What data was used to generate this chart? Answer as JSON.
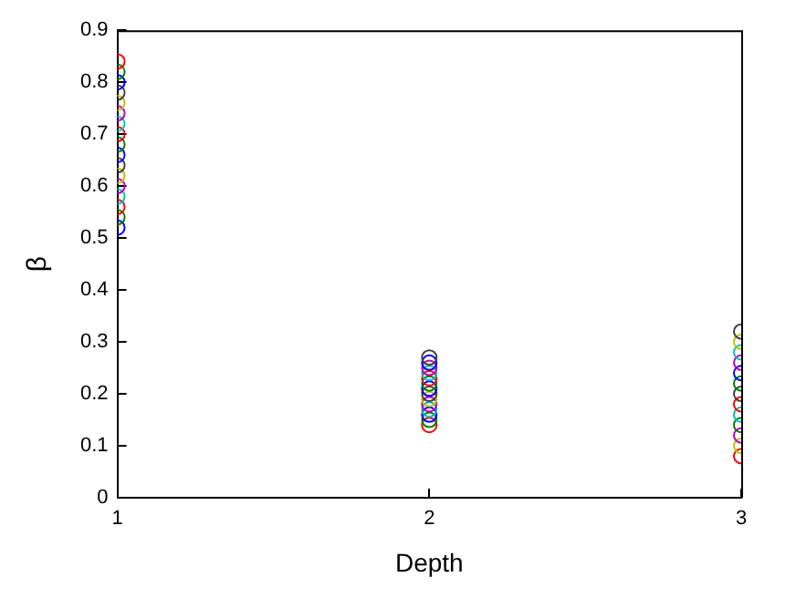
{
  "chart_data": {
    "type": "scatter",
    "xlabel": "Depth",
    "ylabel": "β",
    "xlim": [
      1,
      3
    ],
    "xticks": [
      1,
      2,
      3
    ],
    "ylim": [
      0,
      0.9
    ],
    "yticks": [
      0,
      0.1,
      0.2,
      0.3,
      0.4,
      0.5,
      0.6,
      0.7,
      0.8,
      0.9
    ],
    "grid": false,
    "legend": false,
    "marker": "circle",
    "series": [
      {
        "x": [
          1,
          1,
          1,
          1,
          1,
          1,
          1,
          1,
          1,
          1,
          1,
          1,
          1,
          1,
          1,
          1,
          1,
          2,
          2,
          2,
          2,
          2,
          2,
          2,
          2,
          2,
          2,
          2,
          2,
          2,
          2,
          3,
          3,
          3,
          3,
          3,
          3,
          3,
          3,
          3,
          3,
          3,
          3,
          3
        ],
        "values": [
          0.52,
          0.54,
          0.56,
          0.58,
          0.6,
          0.62,
          0.64,
          0.66,
          0.68,
          0.7,
          0.72,
          0.74,
          0.76,
          0.78,
          0.8,
          0.82,
          0.84,
          0.14,
          0.15,
          0.16,
          0.17,
          0.18,
          0.19,
          0.2,
          0.21,
          0.22,
          0.23,
          0.24,
          0.25,
          0.26,
          0.27,
          0.08,
          0.1,
          0.12,
          0.14,
          0.16,
          0.18,
          0.2,
          0.22,
          0.24,
          0.26,
          0.28,
          0.3,
          0.32
        ],
        "colors": [
          "#0000ff",
          "#008000",
          "#ff0000",
          "#00bfbf",
          "#bf00bf",
          "#bfbf00",
          "#404040",
          "#0000ff",
          "#008000",
          "#ff0000",
          "#00bfbf",
          "#bf00bf",
          "#bfbf00",
          "#404040",
          "#0000ff",
          "#008000",
          "#ff0000",
          "#ff0000",
          "#008000",
          "#0000ff",
          "#00bfbf",
          "#bf00bf",
          "#bfbf00",
          "#404040",
          "#0000ff",
          "#008000",
          "#ff0000",
          "#00bfbf",
          "#bf00bf",
          "#0000ff",
          "#404040",
          "#ff0000",
          "#bfbf00",
          "#bf00bf",
          "#008000",
          "#00bfbf",
          "#ff0000",
          "#404040",
          "#008000",
          "#0000ff",
          "#bf00bf",
          "#00bfbf",
          "#bfbf00",
          "#404040"
        ]
      }
    ]
  }
}
